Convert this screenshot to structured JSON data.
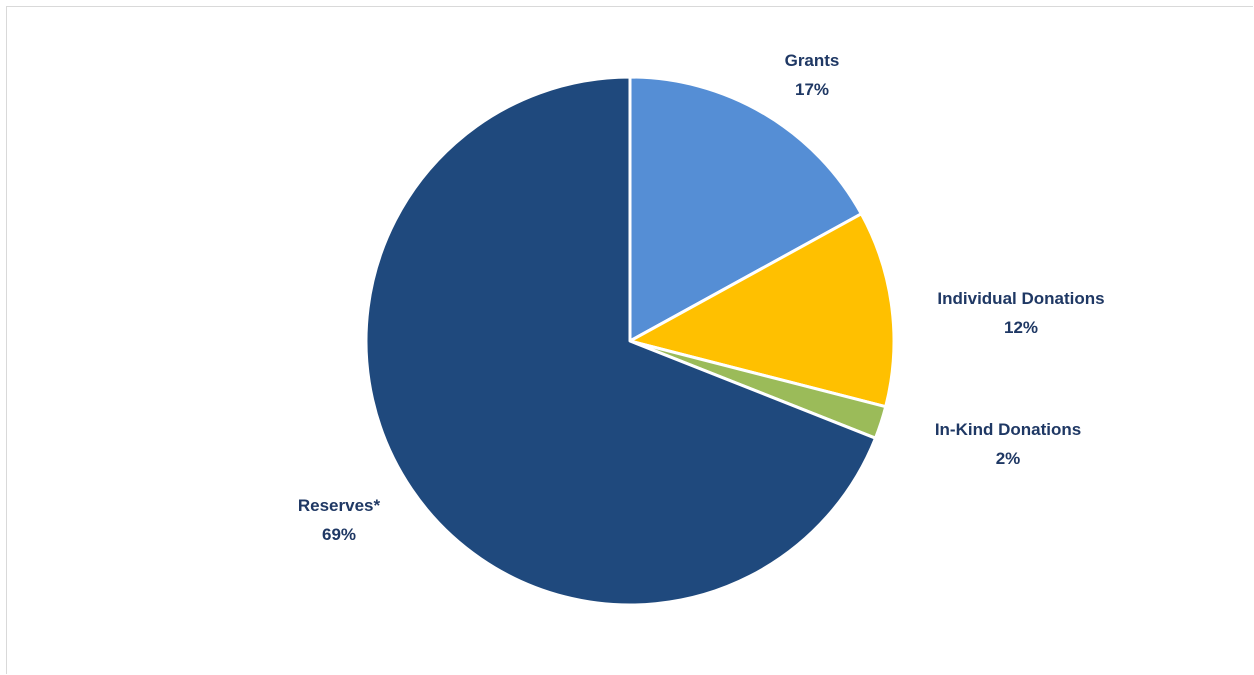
{
  "chart_data": {
    "type": "pie",
    "title": "",
    "slices": [
      {
        "label": "Grants",
        "value": 17,
        "value_label": "17%",
        "color": "#558ed5"
      },
      {
        "label": "Individual Donations",
        "value": 12,
        "value_label": "12%",
        "color": "#ffc000"
      },
      {
        "label": "In-Kind Donations",
        "value": 2,
        "value_label": "2%",
        "color": "#9bbb59"
      },
      {
        "label": "Reserves*",
        "value": 69,
        "value_label": "69%",
        "color": "#1f497d"
      }
    ],
    "start": "top",
    "direction": "clockwise",
    "legend": "none",
    "labels": "outside"
  }
}
